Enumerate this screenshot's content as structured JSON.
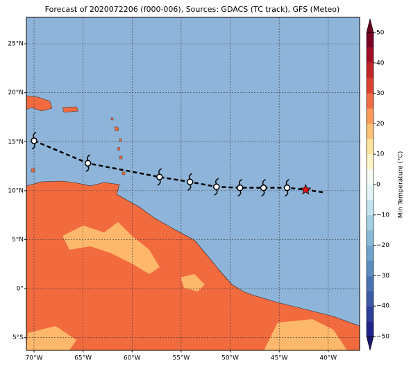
{
  "chart_data": {
    "type": "map",
    "title": "Forecast of 2020072206 (f000-006), Sources: GDACS (TC track), GFS (Meteo)",
    "xlim": [
      -70.78,
      -36.8
    ],
    "ylim": [
      -6.3,
      27.7
    ],
    "xticks": [
      {
        "value": -70,
        "label": "70°W"
      },
      {
        "value": -65,
        "label": "65°W"
      },
      {
        "value": -60,
        "label": "60°W"
      },
      {
        "value": -55,
        "label": "55°W"
      },
      {
        "value": -50,
        "label": "50°W"
      },
      {
        "value": -45,
        "label": "45°W"
      },
      {
        "value": -40,
        "label": "40°W"
      }
    ],
    "yticks": [
      {
        "value": 25,
        "label": "25°N"
      },
      {
        "value": 20,
        "label": "20°N"
      },
      {
        "value": 15,
        "label": "15°N"
      },
      {
        "value": 10,
        "label": "10°N"
      },
      {
        "value": 5,
        "label": "5°N"
      },
      {
        "value": 0,
        "label": "0°"
      },
      {
        "value": -5,
        "label": "5°S"
      }
    ],
    "grid": true,
    "track": {
      "lon": [
        -70,
        -64.5,
        -57.2,
        -54.1,
        -51.4,
        -49,
        -46.6,
        -44.2,
        -42.3,
        -40.3
      ],
      "lat": [
        15.1,
        12.8,
        11.4,
        10.9,
        10.4,
        10.3,
        10.3,
        10.3,
        10.1,
        9.8
      ],
      "color": "#000000"
    },
    "current_position": {
      "lon": -42.3,
      "lat": 10.1,
      "color": "#e8141a"
    },
    "colorbar": {
      "label": "Min Temperature (°C)",
      "lim": [
        -50,
        50
      ],
      "ticks": [
        {
          "value": -50,
          "label": "−50"
        },
        {
          "value": -40,
          "label": "−40"
        },
        {
          "value": -30,
          "label": "−30"
        },
        {
          "value": -20,
          "label": "−20"
        },
        {
          "value": -10,
          "label": "−10"
        },
        0,
        10,
        20,
        30,
        40,
        50
      ],
      "levels": [
        -50,
        -45,
        -40,
        -35,
        -30,
        -25,
        -20,
        -15,
        -10,
        -5,
        0,
        5,
        10,
        15,
        20,
        25,
        30,
        35,
        40,
        45,
        50
      ],
      "colors": [
        "#23238e",
        "#2c3f9a",
        "#3b5aa6",
        "#4a73b2",
        "#5a8cc0",
        "#6fa3cc",
        "#87b9d8",
        "#a3cfe4",
        "#c3e3ee",
        "#e3f3f7",
        "#f5fbf4",
        "#fdf3c8",
        "#fee39c",
        "#fdc177",
        "#f99a5a",
        "#f06c43",
        "#dc4230",
        "#c22427",
        "#a00f26",
        "#7d0225"
      ],
      "under_color": "#1a1a6e",
      "over_color": "#67001f"
    }
  }
}
